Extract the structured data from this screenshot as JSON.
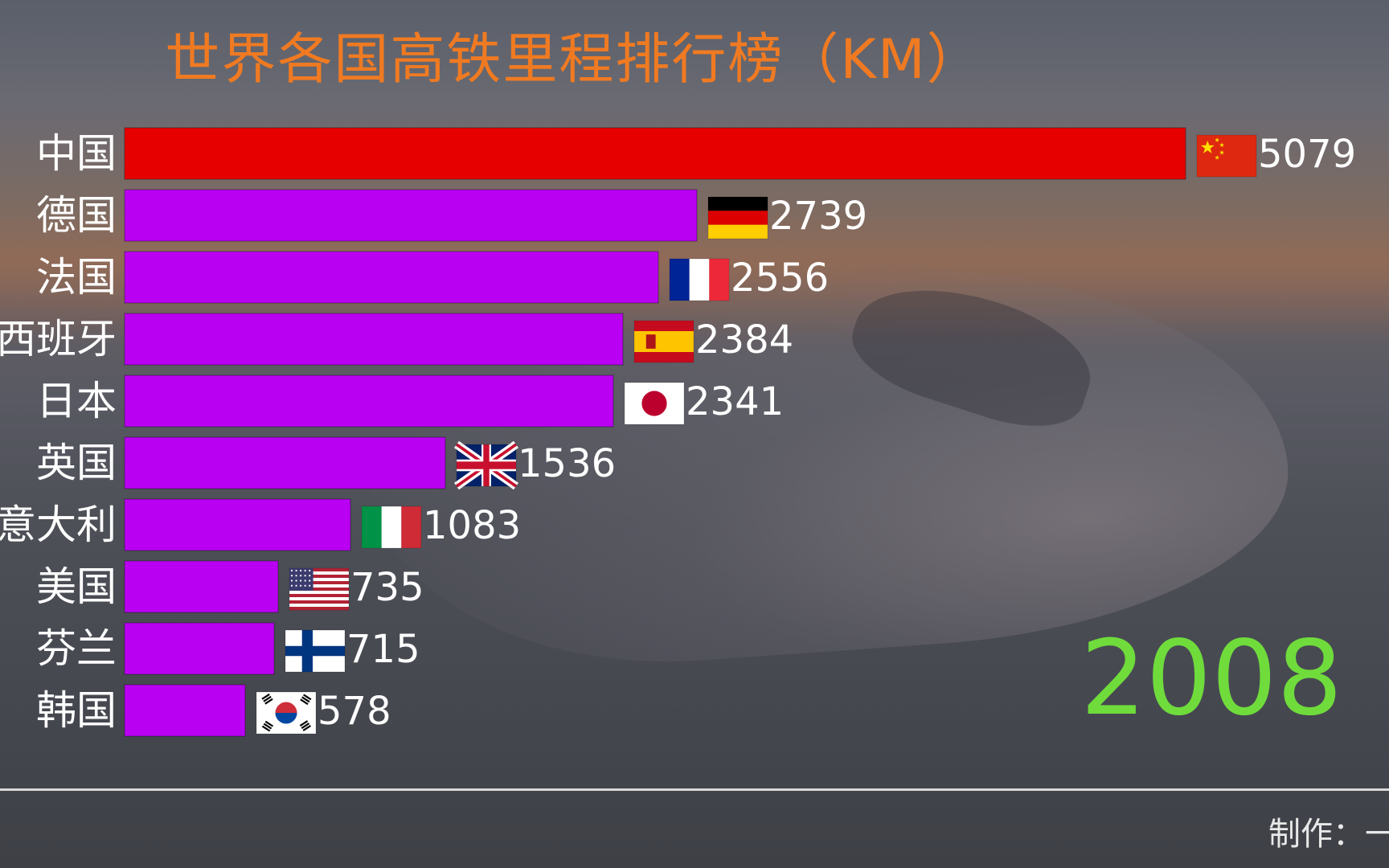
{
  "title": "世界各国高铁里程排行榜（KM）",
  "year": "2008",
  "footer": {
    "label": "制作：",
    "trailing": "一"
  },
  "colors": {
    "title": "#f07a22",
    "leader_bar": "#e60000",
    "bar": "#b900f2",
    "year": "#6fdc3c"
  },
  "chart_data": {
    "type": "bar",
    "orientation": "horizontal",
    "title": "世界各国高铁里程排行榜（KM）",
    "categories": [
      "中国",
      "德国",
      "法国",
      "西班牙",
      "日本",
      "英国",
      "意大利",
      "美国",
      "芬兰",
      "韩国"
    ],
    "values": [
      5079,
      2739,
      2556,
      2384,
      2341,
      1536,
      1083,
      735,
      715,
      578
    ],
    "flags": [
      "china-flag",
      "germany-flag",
      "france-flag",
      "spain-flag",
      "japan-flag",
      "uk-flag",
      "italy-flag",
      "usa-flag",
      "finland-flag",
      "korea-flag"
    ],
    "bar_colors": [
      "#e60000",
      "#b900f2",
      "#b900f2",
      "#b900f2",
      "#b900f2",
      "#b900f2",
      "#b900f2",
      "#b900f2",
      "#b900f2",
      "#b900f2"
    ],
    "xlim": [
      0,
      5079
    ],
    "grid": false,
    "legend": "none"
  }
}
